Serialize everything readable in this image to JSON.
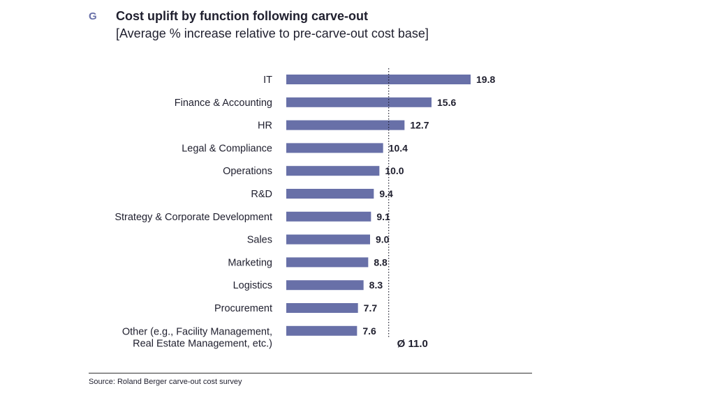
{
  "header": {
    "badge": "G",
    "title": "Cost uplift by function following carve-out",
    "subtitle": "[Average % increase relative to pre-carve-out cost base]"
  },
  "chart_data": {
    "type": "bar",
    "orientation": "horizontal",
    "categories": [
      "IT",
      "Finance & Accounting",
      "HR",
      "Legal & Compliance",
      "Operations",
      "R&D",
      "Strategy & Corporate Development",
      "Sales",
      "Marketing",
      "Logistics",
      "Procurement",
      "Other (e.g., Facility Management,\nReal Estate Management, etc.)"
    ],
    "values": [
      19.8,
      15.6,
      12.7,
      10.4,
      10.0,
      9.4,
      9.1,
      9.0,
      8.8,
      8.3,
      7.7,
      7.6
    ],
    "value_labels": [
      "19.8",
      "15.6",
      "12.7",
      "10.4",
      "10.0",
      "9.4",
      "9.1",
      "9.0",
      "8.8",
      "8.3",
      "7.7",
      "7.6"
    ],
    "average": 11.0,
    "average_label": "Ø 11.0",
    "bar_color": "#6870a8",
    "xlim": [
      0,
      20
    ],
    "grid": false
  },
  "footer": {
    "source": "Source: Roland Berger carve-out cost survey"
  }
}
